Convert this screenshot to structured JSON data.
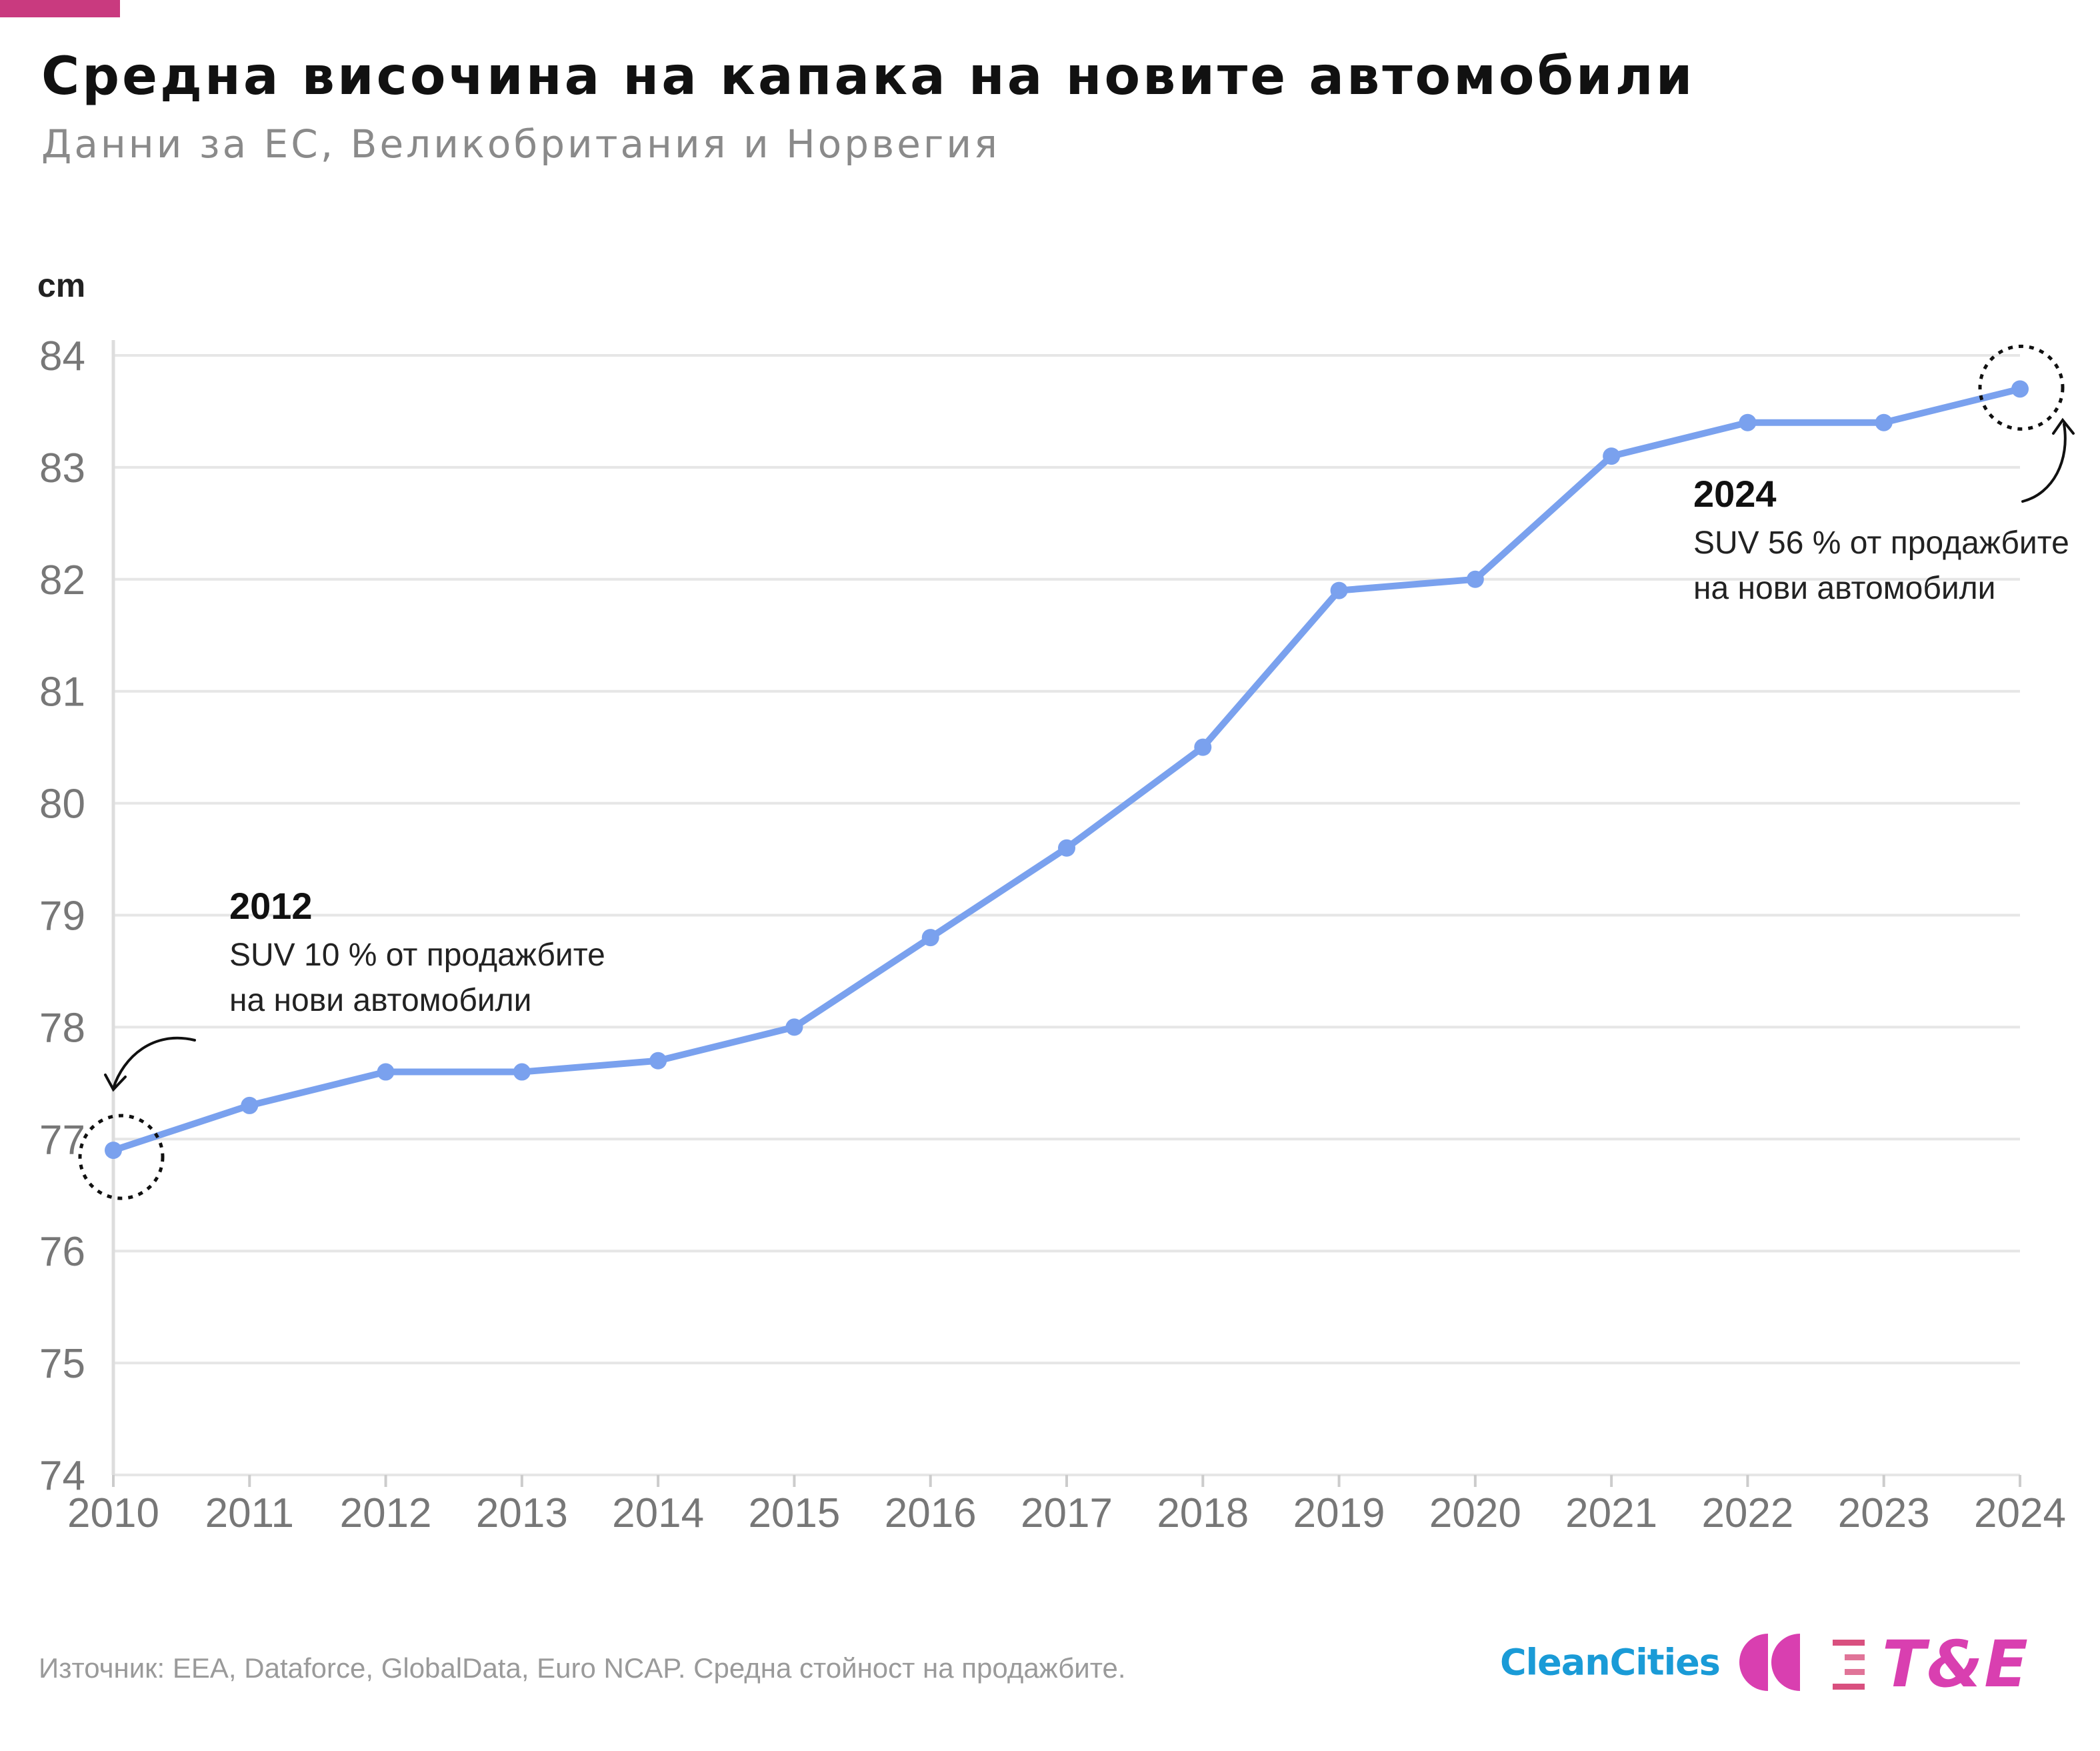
{
  "colors": {
    "accent": "#c93a7f",
    "line": "#7aa1ee",
    "grid": "#e6e6e6",
    "axis_text": "#777777",
    "logo_blue": "#1a9bd7",
    "logo_magenta": "#d93fb0"
  },
  "header": {
    "title": "Средна височина на капака на новите автомобили",
    "subtitle": "Данни за ЕС, Великобритания и Норвегия"
  },
  "chart_data": {
    "type": "line",
    "title": "Средна височина на капака на новите автомобили",
    "subtitle": "Данни за ЕС, Великобритания и Норвегия",
    "unit_label": "cm",
    "xlabel": "",
    "ylabel": "",
    "x": [
      "2010",
      "2011",
      "2012",
      "2013",
      "2014",
      "2015",
      "2016",
      "2017",
      "2018",
      "2019",
      "2020",
      "2021",
      "2022",
      "2023",
      "2024"
    ],
    "y_ticks": [
      "84",
      "83",
      "82",
      "81",
      "80",
      "79",
      "78",
      "77",
      "76",
      "75",
      "74"
    ],
    "ylim": [
      74,
      84
    ],
    "grid": true,
    "series": [
      {
        "values": [
          76.9,
          77.3,
          77.6,
          77.6,
          77.7,
          78.0,
          78.8,
          79.6,
          80.5,
          81.9,
          82.0,
          83.1,
          83.4,
          83.4,
          83.7
        ]
      }
    ],
    "annotations": [
      {
        "year": "2012",
        "text_lines": [
          "SUV 10 % от продажбите",
          "на нови автомобили"
        ],
        "points_to": "2010"
      },
      {
        "year": "2024",
        "text_lines": [
          "SUV 56 % от продажбите",
          "на нови автомобили"
        ],
        "points_to": "2024"
      }
    ]
  },
  "footer": {
    "source": "Източник: EEA, Dataforce, GlobalData, Euro NCAP. Средна стойност на продажбите.",
    "logo_cleancities": "CleanCities",
    "logo_te": "T&E"
  },
  "icons": {
    "cleancities_mark": "double-half-circle-icon",
    "te_mark": "stacked-lines-icon"
  }
}
